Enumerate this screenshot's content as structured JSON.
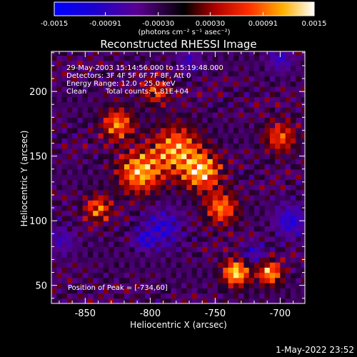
{
  "colorbar": {
    "ticks": [
      "-0.0015",
      "-0.00091",
      "-0.00030",
      "0.00030",
      "0.00091",
      "0.0015"
    ],
    "tick_values": [
      -0.0015,
      -0.00091,
      -0.0003,
      0.0003,
      0.00091,
      0.0015
    ],
    "range": [
      -0.0015,
      0.0015
    ],
    "unit_label": "(photons cm⁻² s⁻¹ asec⁻²)",
    "colors": [
      "#0000ff",
      "#ff0000",
      "#ff9900",
      "#ffffff"
    ]
  },
  "annotations": {
    "time_range": "29-May-2003 15:14:56.000 to 15:19:48.000",
    "detectors": "Detectors: 3F 4F 5F 6F 7F 8F, Att 0",
    "energy": "Energy Range: 12.0 - 25.0 keV",
    "algorithm": "Clean",
    "counts": "Total counts: 1.81E+04",
    "peak": "Position of Peak = [-734,60]"
  },
  "timestamp": "1-May-2022 23:52",
  "chart_data": {
    "type": "heatmap",
    "title": "Reconstructed RHESSI Image",
    "xlabel": "Heliocentric X (arcsec)",
    "ylabel": "Heliocentric Y (arcsec)",
    "xlim": [
      -876,
      -681
    ],
    "ylim": [
      36,
      231
    ],
    "x_ticks": [
      -850,
      -800,
      -750,
      -700
    ],
    "x_tick_labels": [
      "-850",
      "-800",
      "-750",
      "-700"
    ],
    "y_ticks": [
      50,
      100,
      150,
      200
    ],
    "y_tick_labels": [
      "50",
      "100",
      "150",
      "200"
    ],
    "peak_position": [
      -734,
      60
    ],
    "hot_regions": [
      {
        "x": -825,
        "y": 175,
        "r": 12,
        "v": 0.0011
      },
      {
        "x": -808,
        "y": 138,
        "r": 16,
        "v": 0.0013
      },
      {
        "x": -780,
        "y": 155,
        "r": 18,
        "v": 0.0012
      },
      {
        "x": -760,
        "y": 138,
        "r": 14,
        "v": 0.0013
      },
      {
        "x": -745,
        "y": 110,
        "r": 12,
        "v": 0.0011
      },
      {
        "x": -734,
        "y": 60,
        "r": 10,
        "v": 0.0015
      },
      {
        "x": -708,
        "y": 60,
        "r": 9,
        "v": 0.0013
      },
      {
        "x": -840,
        "y": 110,
        "r": 10,
        "v": 0.001
      },
      {
        "x": -700,
        "y": 165,
        "r": 12,
        "v": 0.0009
      },
      {
        "x": -795,
        "y": 200,
        "r": 10,
        "v": 0.0008
      }
    ],
    "cold_regions": [
      {
        "x": -790,
        "y": 95,
        "r": 14,
        "v": -0.0008
      },
      {
        "x": -692,
        "y": 100,
        "r": 12,
        "v": -0.0009
      },
      {
        "x": -700,
        "y": 225,
        "r": 9,
        "v": -0.0007
      },
      {
        "x": -868,
        "y": 85,
        "r": 10,
        "v": -0.0006
      },
      {
        "x": -770,
        "y": 225,
        "r": 9,
        "v": -0.0006
      },
      {
        "x": -720,
        "y": 75,
        "r": 8,
        "v": -0.0007
      },
      {
        "x": -805,
        "y": 85,
        "r": 8,
        "v": -0.0007
      }
    ]
  }
}
